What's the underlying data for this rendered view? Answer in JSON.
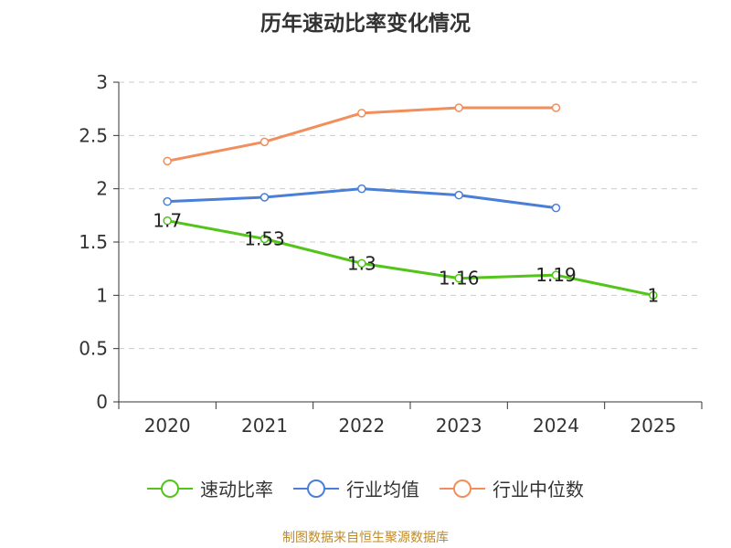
{
  "chart_data": {
    "type": "line",
    "title": "历年速动比率变化情况",
    "xlabel": "",
    "ylabel": "",
    "categories": [
      "2020",
      "2021",
      "2022",
      "2023",
      "2024",
      "2025"
    ],
    "ylim": [
      0,
      3
    ],
    "yticks": [
      0,
      0.5,
      1,
      1.5,
      2,
      2.5,
      3
    ],
    "ytick_labels": [
      "0",
      "0.5",
      "1",
      "1.5",
      "2",
      "2.5",
      "3"
    ],
    "grid": true,
    "legend_position": "bottom",
    "series": [
      {
        "name": "速动比率",
        "color": "#52c41a",
        "values": [
          1.7,
          1.53,
          1.3,
          1.16,
          1.19,
          1.0
        ],
        "labels": [
          "1.7",
          "1.53",
          "1.3",
          "1.16",
          "1.19",
          "1"
        ]
      },
      {
        "name": "行业均值",
        "color": "#4a7fd8",
        "values": [
          1.88,
          1.92,
          2.0,
          1.94,
          1.82,
          null
        ],
        "labels": null
      },
      {
        "name": "行业中位数",
        "color": "#f28e5b",
        "values": [
          2.26,
          2.44,
          2.71,
          2.76,
          2.76,
          null
        ],
        "labels": null
      }
    ]
  },
  "source": "制图数据来自恒生聚源数据库"
}
